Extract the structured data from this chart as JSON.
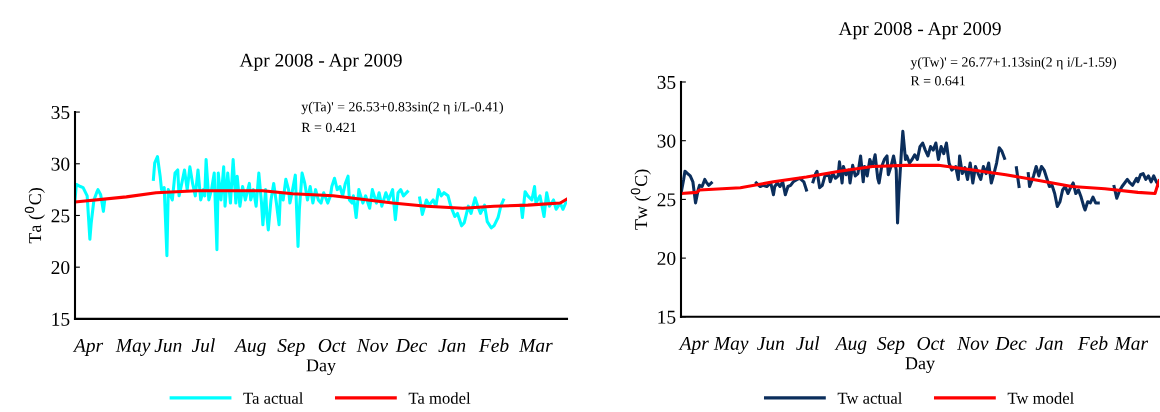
{
  "chart_data": [
    {
      "type": "line",
      "title": "Apr 2008 - Apr 2009",
      "xlabel": "Day",
      "ylabel": "Ta ($^{0}$C)",
      "xlim": [
        "2008-04-01",
        "2009-03-31"
      ],
      "ylim": [
        15,
        35
      ],
      "yticks": [
        15,
        20,
        25,
        30,
        35
      ],
      "xticks": [
        {
          "value": "2008-04-11",
          "label": "Apr"
        },
        {
          "value": "2008-05-14",
          "label": "May"
        },
        {
          "value": "2008-06-09",
          "label": "Jun"
        },
        {
          "value": "2008-07-05",
          "label": "Jul"
        },
        {
          "value": "2008-08-09",
          "label": "Aug"
        },
        {
          "value": "2008-09-08",
          "label": "Sep"
        },
        {
          "value": "2008-10-08",
          "label": "Oct"
        },
        {
          "value": "2008-11-07",
          "label": "Nov"
        },
        {
          "value": "2008-12-06",
          "label": "Dec"
        },
        {
          "value": "2009-01-05",
          "label": "Jan"
        },
        {
          "value": "2009-02-05",
          "label": "Feb"
        },
        {
          "value": "2009-03-08",
          "label": "Mar"
        }
      ],
      "legend": "bottom",
      "annotations": [
        "y(Ta)' = 26.53+0.83sin(2 η i/L-0.41)",
        "R = 0.421"
      ],
      "series": [
        {
          "name": "Ta actual",
          "color": "#00ffff",
          "x": [
            "2008-04-01",
            "2008-04-02",
            "2008-04-05",
            "2008-04-07",
            "2008-04-10",
            "2008-04-12",
            "2008-04-13",
            "2008-04-15",
            "2008-04-17",
            "2008-04-18",
            "2008-04-20",
            "2008-04-22",
            "2008-04-23",
            "2008-05-10",
            "2008-05-29",
            "2008-05-30",
            "2008-06-01",
            "2008-06-03",
            "2008-06-04",
            "2008-06-06",
            "2008-06-08",
            "2008-06-09",
            "2008-06-12",
            "2008-06-14",
            "2008-06-16",
            "2008-06-17",
            "2008-06-19",
            "2008-06-21",
            "2008-06-23",
            "2008-06-25",
            "2008-06-27",
            "2008-06-29",
            "2008-07-01",
            "2008-07-03",
            "2008-07-05",
            "2008-07-06",
            "2008-07-07",
            "2008-07-09",
            "2008-07-11",
            "2008-07-13",
            "2008-07-15",
            "2008-07-16",
            "2008-07-18",
            "2008-07-20",
            "2008-07-21",
            "2008-07-23",
            "2008-07-25",
            "2008-07-27",
            "2008-07-29",
            "2008-07-30",
            "2008-08-01",
            "2008-08-03",
            "2008-08-05",
            "2008-08-08",
            "2008-08-09",
            "2008-08-11",
            "2008-08-13",
            "2008-08-15",
            "2008-08-17",
            "2008-08-18",
            "2008-08-20",
            "2008-08-21",
            "2008-08-22",
            "2008-08-24",
            "2008-08-26",
            "2008-08-28",
            "2008-08-30",
            "2008-08-31",
            "2008-09-02",
            "2008-09-04",
            "2008-09-06",
            "2008-09-07",
            "2008-09-09",
            "2008-09-11",
            "2008-09-13",
            "2008-09-14",
            "2008-09-16",
            "2008-09-18",
            "2008-09-20",
            "2008-09-22",
            "2008-09-24",
            "2008-09-26",
            "2008-09-28",
            "2008-09-30",
            "2008-10-02",
            "2008-10-05",
            "2008-10-07",
            "2008-10-08",
            "2008-10-10",
            "2008-10-12",
            "2008-10-14",
            "2008-10-16",
            "2008-10-18",
            "2008-10-20",
            "2008-10-21",
            "2008-10-23",
            "2008-10-24",
            "2008-10-26",
            "2008-10-28",
            "2008-10-31",
            "2008-11-02",
            "2008-11-05",
            "2008-11-07",
            "2008-11-10",
            "2008-11-12",
            "2008-11-14",
            "2008-11-17",
            "2008-11-19",
            "2008-11-22",
            "2008-11-24",
            "2008-11-26",
            "2008-11-28",
            "2008-11-30",
            "2008-12-03",
            "2008-12-09",
            "2008-12-12",
            "2008-12-14",
            "2008-12-17",
            "2008-12-19",
            "2008-12-22",
            "2008-12-24",
            "2008-12-26",
            "2008-12-28",
            "2008-12-30",
            "2009-01-02",
            "2009-01-04",
            "2009-01-07",
            "2009-01-09",
            "2009-01-12",
            "2009-01-14",
            "2009-01-17",
            "2009-01-19",
            "2009-01-22",
            "2009-01-24",
            "2009-01-26",
            "2009-01-29",
            "2009-01-31",
            "2009-02-03",
            "2009-02-05",
            "2009-02-08",
            "2009-02-10",
            "2009-02-12",
            "2009-02-24",
            "2009-02-25",
            "2009-02-26",
            "2009-02-28",
            "2009-03-02",
            "2009-03-05",
            "2009-03-07",
            "2009-03-08",
            "2009-03-11",
            "2009-03-14",
            "2009-03-16",
            "2009-03-18",
            "2009-03-21",
            "2009-03-23",
            "2009-03-26",
            "2009-03-28",
            "2009-03-31"
          ],
          "values": [
            26.5,
            28.0,
            27.8,
            27.7,
            26.9,
            22.7,
            24.3,
            26.5,
            27.2,
            27.5,
            27.0,
            25.4,
            26.5,
            null,
            28.5,
            30.1,
            30.7,
            28.8,
            27.5,
            27.7,
            21.1,
            27.5,
            26.5,
            29.1,
            29.4,
            26.9,
            28.1,
            29.4,
            27.5,
            29.7,
            28.1,
            26.9,
            29.4,
            26.5,
            27.5,
            26.9,
            30.4,
            26.5,
            27.5,
            29.1,
            21.7,
            29.1,
            26.5,
            29.7,
            25.9,
            29.1,
            26.2,
            30.4,
            26.2,
            28.8,
            25.9,
            27.8,
            26.5,
            28.1,
            26.5,
            27.5,
            25.9,
            29.1,
            26.2,
            24.1,
            27.5,
            24.9,
            23.6,
            26.5,
            28.1,
            26.2,
            24.1,
            27.2,
            26.5,
            28.5,
            27.5,
            26.2,
            27.5,
            28.9,
            22.0,
            25.6,
            29.1,
            28.1,
            26.5,
            27.8,
            26.2,
            27.5,
            26.5,
            26.2,
            27.2,
            26.2,
            26.9,
            27.8,
            28.6,
            27.5,
            27.8,
            26.9,
            28.1,
            28.8,
            26.5,
            26.2,
            26.9,
            24.8,
            27.5,
            26.2,
            26.9,
            25.7,
            27.5,
            26.2,
            27.2,
            25.9,
            27.2,
            26.5,
            27.5,
            24.6,
            27.2,
            27.5,
            26.9,
            27.3,
            null,
            26.7,
            25.1,
            26.5,
            26.0,
            26.5,
            25.9,
            27.5,
            26.9,
            27.2,
            26.9,
            25.9,
            24.9,
            25.2,
            24.0,
            24.3,
            25.9,
            25.2,
            26.7,
            25.9,
            25.2,
            26.0,
            24.4,
            23.8,
            24.0,
            24.8,
            25.9,
            26.5,
            null,
            26.0,
            24.8,
            27.3,
            26.9,
            26.5,
            27.8,
            26.2,
            26.9,
            24.9,
            27.2,
            25.9,
            26.5,
            25.6,
            26.2,
            25.6,
            26.5
          ]
        },
        {
          "name": "Ta model",
          "color": "#ff0000",
          "x": [
            "2008-04-01",
            "2008-05-09",
            "2008-05-31",
            "2008-06-30",
            "2008-08-18",
            "2008-09-09",
            "2008-10-09",
            "2008-11-22",
            "2008-12-17",
            "2009-01-13",
            "2009-02-05",
            "2009-03-02",
            "2009-03-26",
            "2009-03-31"
          ],
          "values": [
            26.3,
            26.8,
            27.2,
            27.4,
            27.4,
            27.1,
            26.9,
            26.2,
            25.9,
            25.7,
            25.9,
            26.0,
            26.2,
            26.6
          ]
        }
      ]
    },
    {
      "type": "line",
      "title": "Apr 2008 - Apr 2009",
      "xlabel": "Day",
      "ylabel": "Tw ($^{0}$C)",
      "xlim": [
        "2008-04-01",
        "2009-03-29"
      ],
      "ylim": [
        15,
        35
      ],
      "yticks": [
        15,
        20,
        25,
        30,
        35
      ],
      "xticks": [
        {
          "value": "2008-04-11",
          "label": "Apr"
        },
        {
          "value": "2008-05-09",
          "label": "May"
        },
        {
          "value": "2008-06-08",
          "label": "Jun"
        },
        {
          "value": "2008-07-06",
          "label": "Jul"
        },
        {
          "value": "2008-08-08",
          "label": "Aug"
        },
        {
          "value": "2008-09-07",
          "label": "Sep"
        },
        {
          "value": "2008-10-07",
          "label": "Oct"
        },
        {
          "value": "2008-11-08",
          "label": "Nov"
        },
        {
          "value": "2008-12-07",
          "label": "Dec"
        },
        {
          "value": "2009-01-05",
          "label": "Jan"
        },
        {
          "value": "2009-02-07",
          "label": "Feb"
        },
        {
          "value": "2009-03-08",
          "label": "Mar"
        }
      ],
      "legend": "bottom",
      "annotations": [
        "y(Tw)' = 26.77+1.13sin(2 η i/L-1.59)",
        "R = 0.641"
      ],
      "series": [
        {
          "name": "Tw actual",
          "color": "#0b2e5c",
          "x": [
            "2008-04-01",
            "2008-04-03",
            "2008-04-04",
            "2008-04-06",
            "2008-04-08",
            "2008-04-10",
            "2008-04-12",
            "2008-04-14",
            "2008-04-15",
            "2008-04-17",
            "2008-04-19",
            "2008-04-20",
            "2008-04-22",
            "2008-04-24",
            "2008-05-10",
            "2008-05-28",
            "2008-05-31",
            "2008-06-02",
            "2008-06-05",
            "2008-06-08",
            "2008-06-10",
            "2008-06-11",
            "2008-06-13",
            "2008-06-15",
            "2008-06-17",
            "2008-06-19",
            "2008-06-21",
            "2008-06-23",
            "2008-06-25",
            "2008-06-28",
            "2008-06-30",
            "2008-07-03",
            "2008-07-05",
            "2008-07-09",
            "2008-07-10",
            "2008-07-12",
            "2008-07-13",
            "2008-07-15",
            "2008-07-17",
            "2008-07-19",
            "2008-07-22",
            "2008-07-23",
            "2008-07-25",
            "2008-07-27",
            "2008-07-29",
            "2008-07-30",
            "2008-08-01",
            "2008-08-02",
            "2008-08-04",
            "2008-08-06",
            "2008-08-07",
            "2008-08-09",
            "2008-08-11",
            "2008-08-13",
            "2008-08-15",
            "2008-08-17",
            "2008-08-18",
            "2008-08-20",
            "2008-08-22",
            "2008-08-24",
            "2008-08-26",
            "2008-08-28",
            "2008-08-29",
            "2008-08-31",
            "2008-09-02",
            "2008-09-04",
            "2008-09-05",
            "2008-09-07",
            "2008-09-09",
            "2008-09-11",
            "2008-09-12",
            "2008-09-13",
            "2008-09-15",
            "2008-09-16",
            "2008-09-18",
            "2008-09-19",
            "2008-09-21",
            "2008-09-23",
            "2008-09-25",
            "2008-09-27",
            "2008-09-29",
            "2008-10-01",
            "2008-10-03",
            "2008-10-05",
            "2008-10-07",
            "2008-10-09",
            "2008-10-11",
            "2008-10-13",
            "2008-10-15",
            "2008-10-17",
            "2008-10-19",
            "2008-10-21",
            "2008-10-23",
            "2008-10-26",
            "2008-10-28",
            "2008-10-29",
            "2008-10-31",
            "2008-11-02",
            "2008-11-04",
            "2008-11-06",
            "2008-11-08",
            "2008-11-10",
            "2008-11-12",
            "2008-11-14",
            "2008-11-16",
            "2008-11-18",
            "2008-11-20",
            "2008-11-22",
            "2008-11-24",
            "2008-11-26",
            "2008-11-28",
            "2008-11-30",
            "2008-12-02",
            "2008-12-06",
            "2008-12-11",
            "2008-12-13",
            "2008-12-16",
            "2008-12-20",
            "2008-12-21",
            "2008-12-24",
            "2008-12-26",
            "2008-12-28",
            "2008-12-30",
            "2009-01-01",
            "2009-01-03",
            "2009-01-05",
            "2009-01-07",
            "2009-01-09",
            "2009-01-11",
            "2009-01-13",
            "2009-01-15",
            "2009-01-17",
            "2009-01-19",
            "2009-01-21",
            "2009-01-23",
            "2009-01-25",
            "2009-01-27",
            "2009-01-29",
            "2009-01-31",
            "2009-02-01",
            "2009-02-03",
            "2009-02-05",
            "2009-02-07",
            "2009-02-09",
            "2009-02-11",
            "2009-02-19",
            "2009-02-23",
            "2009-02-25",
            "2009-02-27",
            "2009-03-01",
            "2009-03-03",
            "2009-03-05",
            "2009-03-07",
            "2009-03-09",
            "2009-03-12",
            "2009-03-13",
            "2009-03-15",
            "2009-03-17",
            "2009-03-19",
            "2009-03-21",
            "2009-03-23",
            "2009-03-25",
            "2009-03-27",
            "2009-03-29"
          ],
          "values": [
            25.5,
            26.7,
            27.4,
            27.2,
            27.0,
            26.5,
            24.7,
            25.8,
            26.2,
            26.1,
            26.7,
            26.5,
            26.2,
            26.4,
            null,
            26.4,
            26.1,
            26.2,
            26.1,
            26.4,
            25.4,
            26.1,
            26.4,
            26.1,
            26.5,
            25.4,
            26.1,
            26.2,
            26.5,
            26.7,
            26.8,
            26.5,
            25.8,
            null,
            26.5,
            27.2,
            27.4,
            26.0,
            26.2,
            27.0,
            27.1,
            26.5,
            27.2,
            26.8,
            27.0,
            28.2,
            26.4,
            27.8,
            27.1,
            27.5,
            26.4,
            27.9,
            27.0,
            27.2,
            28.7,
            26.5,
            27.8,
            27.0,
            28.4,
            27.8,
            28.8,
            26.8,
            26.4,
            27.8,
            28.4,
            28.7,
            27.1,
            27.8,
            28.7,
            27.5,
            23.0,
            25.5,
            29.2,
            30.8,
            28.4,
            28.7,
            28.1,
            28.4,
            28.8,
            28.4,
            29.5,
            29.8,
            29.2,
            28.7,
            29.5,
            29.2,
            29.8,
            28.4,
            29.5,
            28.9,
            29.8,
            28.1,
            27.5,
            27.8,
            26.7,
            28.7,
            27.2,
            27.7,
            26.7,
            28.1,
            26.4,
            27.8,
            27.2,
            26.7,
            27.8,
            27.2,
            28.1,
            26.4,
            27.2,
            28.1,
            29.4,
            29.1,
            28.5,
            null,
            27.7,
            26.1,
            null,
            27.2,
            26.1,
            27.0,
            27.8,
            27.0,
            27.8,
            27.5,
            26.8,
            26.1,
            26.2,
            25.5,
            24.4,
            24.8,
            25.8,
            26.1,
            25.5,
            26.0,
            26.4,
            25.5,
            25.8,
            25.2,
            24.4,
            24.1,
            24.8,
            24.7,
            25.2,
            24.7,
            24.7,
            null,
            26.1,
            25.1,
            25.7,
            26.1,
            26.4,
            26.7,
            26.4,
            26.2,
            26.8,
            26.5,
            27.1,
            27.2,
            26.7,
            27.0,
            26.5,
            27.0,
            26.5,
            26.2
          ]
        },
        {
          "name": "Tw model",
          "color": "#ff0000",
          "x": [
            "2008-04-01",
            "2008-04-13",
            "2008-04-15",
            "2008-05-16",
            "2008-06-10",
            "2008-07-05",
            "2008-07-30",
            "2008-08-24",
            "2008-09-18",
            "2008-10-13",
            "2008-11-08",
            "2008-12-03",
            "2008-12-28",
            "2009-01-22",
            "2009-02-16",
            "2009-03-13",
            "2009-03-26",
            "2009-03-29"
          ],
          "values": [
            25.5,
            25.6,
            25.8,
            26.0,
            26.5,
            26.9,
            27.4,
            27.8,
            27.9,
            27.9,
            27.5,
            27.1,
            26.6,
            26.1,
            25.9,
            25.6,
            25.5,
            26.6
          ]
        }
      ]
    }
  ]
}
